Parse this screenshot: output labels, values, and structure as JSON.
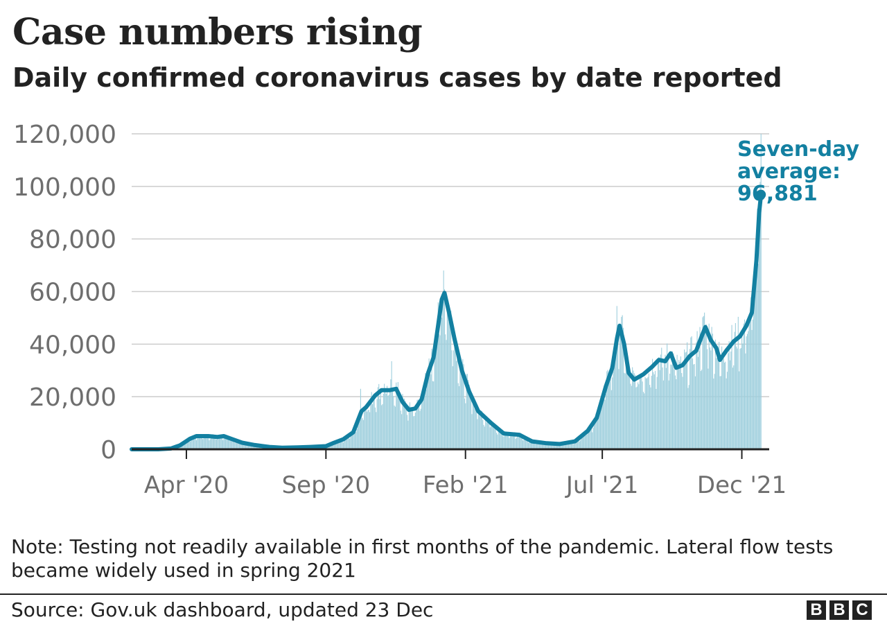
{
  "header": {
    "title": "Case numbers rising",
    "subtitle": "Daily confirmed coronavirus cases by date reported"
  },
  "footer": {
    "note": "Note: Testing not readily available in first months of the pandemic. Lateral flow tests became widely used in spring 2021",
    "source": "Source: Gov.uk dashboard, updated 23 Dec",
    "logo_letters": [
      "B",
      "B",
      "C"
    ]
  },
  "colors": {
    "line": "#1380A1",
    "bars": "#9fcfdd",
    "grid": "#cccccc",
    "axis": "#222222",
    "tick_text": "#6e6e6e"
  },
  "chart_data": {
    "type": "line",
    "title": "Case numbers rising",
    "subtitle": "Daily confirmed coronavirus cases by date reported",
    "xlabel": "",
    "ylabel": "",
    "x_range": [
      "2020-02-01",
      "2021-12-31"
    ],
    "ylim": [
      0,
      120000
    ],
    "y_ticks": [
      0,
      20000,
      40000,
      60000,
      80000,
      100000,
      120000
    ],
    "y_tick_labels": [
      "0",
      "20,000",
      "40,000",
      "60,000",
      "80,000",
      "100,000",
      "120,000"
    ],
    "x_ticks": [
      {
        "date": "2020-04-01",
        "label": "Apr '20"
      },
      {
        "date": "2020-09-01",
        "label": "Sep '20"
      },
      {
        "date": "2021-02-01",
        "label": "Feb '21"
      },
      {
        "date": "2021-07-01",
        "label": "Jul '21"
      },
      {
        "date": "2021-12-01",
        "label": "Dec '21"
      }
    ],
    "grid": true,
    "series": [
      {
        "kind": "line",
        "points": [
          [
            "2020-02-01",
            0
          ],
          [
            "2020-03-01",
            0
          ],
          [
            "2020-03-15",
            300
          ],
          [
            "2020-03-25",
            1500
          ],
          [
            "2020-04-05",
            4000
          ],
          [
            "2020-04-12",
            5000
          ],
          [
            "2020-04-25",
            5000
          ],
          [
            "2020-05-05",
            4700
          ],
          [
            "2020-05-12",
            5000
          ],
          [
            "2020-05-20",
            4000
          ],
          [
            "2020-06-01",
            2500
          ],
          [
            "2020-06-15",
            1600
          ],
          [
            "2020-07-01",
            900
          ],
          [
            "2020-07-15",
            600
          ],
          [
            "2020-08-01",
            700
          ],
          [
            "2020-08-15",
            900
          ],
          [
            "2020-09-01",
            1200
          ],
          [
            "2020-09-10",
            2500
          ],
          [
            "2020-09-20",
            3800
          ],
          [
            "2020-10-01",
            6500
          ],
          [
            "2020-10-10",
            14500
          ],
          [
            "2020-10-15",
            16000
          ],
          [
            "2020-10-25",
            20500
          ],
          [
            "2020-11-01",
            22500
          ],
          [
            "2020-11-10",
            22500
          ],
          [
            "2020-11-17",
            23000
          ],
          [
            "2020-11-24",
            18000
          ],
          [
            "2020-12-01",
            15000
          ],
          [
            "2020-12-08",
            15500
          ],
          [
            "2020-12-15",
            19000
          ],
          [
            "2020-12-22",
            29000
          ],
          [
            "2020-12-28",
            35000
          ],
          [
            "2021-01-02",
            47000
          ],
          [
            "2021-01-06",
            57000
          ],
          [
            "2021-01-09",
            59500
          ],
          [
            "2021-01-14",
            52000
          ],
          [
            "2021-01-20",
            42000
          ],
          [
            "2021-01-28",
            30000
          ],
          [
            "2021-02-05",
            22000
          ],
          [
            "2021-02-15",
            14500
          ],
          [
            "2021-03-01",
            10000
          ],
          [
            "2021-03-15",
            6000
          ],
          [
            "2021-04-01",
            5500
          ],
          [
            "2021-04-15",
            3000
          ],
          [
            "2021-05-01",
            2300
          ],
          [
            "2021-05-15",
            2000
          ],
          [
            "2021-06-01",
            3000
          ],
          [
            "2021-06-15",
            7000
          ],
          [
            "2021-06-25",
            12000
          ],
          [
            "2021-07-05",
            24000
          ],
          [
            "2021-07-12",
            31000
          ],
          [
            "2021-07-17",
            42000
          ],
          [
            "2021-07-20",
            47000
          ],
          [
            "2021-07-25",
            40000
          ],
          [
            "2021-07-30",
            29000
          ],
          [
            "2021-08-05",
            26500
          ],
          [
            "2021-08-15",
            28500
          ],
          [
            "2021-08-25",
            31500
          ],
          [
            "2021-09-01",
            34000
          ],
          [
            "2021-09-08",
            33500
          ],
          [
            "2021-09-14",
            36500
          ],
          [
            "2021-09-20",
            31000
          ],
          [
            "2021-09-27",
            32000
          ],
          [
            "2021-10-05",
            35500
          ],
          [
            "2021-10-12",
            37500
          ],
          [
            "2021-10-18",
            43000
          ],
          [
            "2021-10-22",
            46500
          ],
          [
            "2021-10-28",
            41500
          ],
          [
            "2021-11-03",
            38500
          ],
          [
            "2021-11-07",
            34000
          ],
          [
            "2021-11-14",
            37500
          ],
          [
            "2021-11-22",
            41000
          ],
          [
            "2021-11-29",
            43000
          ],
          [
            "2021-12-06",
            47000
          ],
          [
            "2021-12-12",
            52000
          ],
          [
            "2021-12-17",
            72000
          ],
          [
            "2021-12-20",
            90000
          ],
          [
            "2021-12-22",
            96881
          ]
        ]
      },
      {
        "kind": "bar",
        "daily_peaks": [
          [
            "2020-10-09",
            23000
          ],
          [
            "2020-11-12",
            33500
          ],
          [
            "2021-01-08",
            68000
          ],
          [
            "2021-07-17",
            54500
          ],
          [
            "2021-10-21",
            52000
          ],
          [
            "2021-12-22",
            120000
          ]
        ]
      }
    ],
    "annotation": {
      "lines": [
        "Seven-day",
        "average:",
        "96,881"
      ],
      "date": "2021-12-22",
      "value": 96881
    }
  }
}
